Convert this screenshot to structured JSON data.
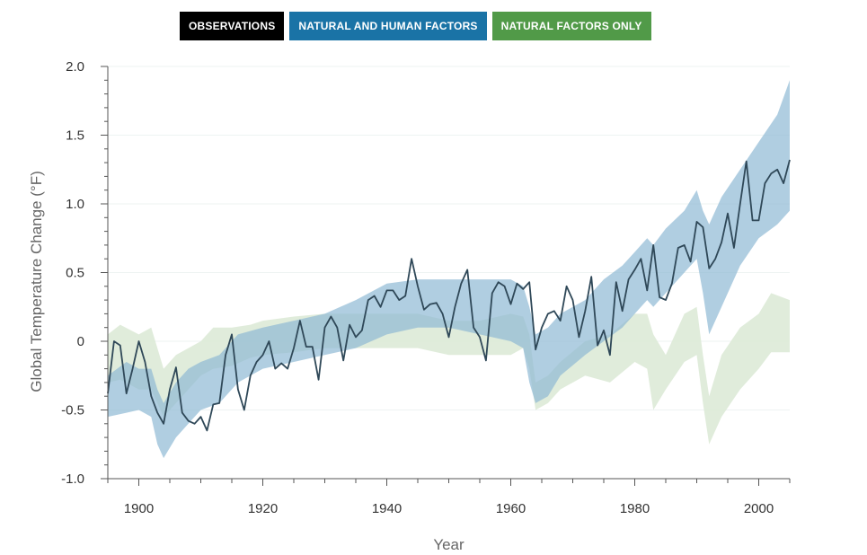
{
  "legend": {
    "observations": {
      "label": "OBSERVATIONS",
      "color": "#000000"
    },
    "natural_human": {
      "label": "NATURAL AND HUMAN FACTORS",
      "color": "#1a73a6"
    },
    "natural_only": {
      "label": "NATURAL FACTORS ONLY",
      "color": "#519a48"
    }
  },
  "chart_data": {
    "type": "line",
    "title": "",
    "xlabel": "Year",
    "ylabel": "Global Temperature Change (°F)",
    "xlim": [
      1895,
      2005
    ],
    "ylim": [
      -1.0,
      2.0
    ],
    "x_ticks": [
      1900,
      1920,
      1940,
      1960,
      1980,
      2000
    ],
    "y_ticks": [
      -1.0,
      -0.5,
      0,
      0.5,
      1.0,
      1.5,
      2.0
    ],
    "y_tick_labels": [
      "-1.0",
      "-0.5",
      "0",
      "0.5",
      "1.0",
      "1.5",
      "2.0"
    ],
    "series": [
      {
        "name": "NATURAL FACTORS ONLY",
        "kind": "band",
        "color": "#dbe9d5",
        "x": [
          1895,
          1897,
          1900,
          1902,
          1904,
          1906,
          1908,
          1910,
          1912,
          1915,
          1918,
          1920,
          1925,
          1930,
          1935,
          1940,
          1945,
          1950,
          1955,
          1960,
          1962,
          1963,
          1964,
          1966,
          1968,
          1972,
          1976,
          1980,
          1982,
          1983,
          1985,
          1988,
          1990,
          1991,
          1992,
          1994,
          1997,
          2000,
          2002,
          2005
        ],
        "upper": [
          0.05,
          0.12,
          0.05,
          0.1,
          -0.2,
          -0.1,
          -0.05,
          0.0,
          0.1,
          0.1,
          0.12,
          0.15,
          0.18,
          0.2,
          0.2,
          0.2,
          0.2,
          0.15,
          0.15,
          0.2,
          0.18,
          0.05,
          -0.3,
          -0.25,
          -0.15,
          0.0,
          0.05,
          0.2,
          0.2,
          0.05,
          -0.1,
          0.2,
          0.25,
          -0.1,
          -0.4,
          -0.1,
          0.1,
          0.2,
          0.35,
          0.3
        ],
        "lower": [
          -0.3,
          -0.28,
          -0.35,
          -0.35,
          -0.55,
          -0.45,
          -0.35,
          -0.25,
          -0.2,
          -0.18,
          -0.12,
          -0.1,
          -0.08,
          -0.05,
          -0.05,
          -0.05,
          -0.05,
          -0.1,
          -0.1,
          -0.1,
          -0.05,
          -0.2,
          -0.5,
          -0.45,
          -0.35,
          -0.25,
          -0.3,
          -0.15,
          -0.2,
          -0.5,
          -0.35,
          -0.15,
          -0.1,
          -0.45,
          -0.75,
          -0.55,
          -0.35,
          -0.2,
          -0.08,
          -0.08
        ]
      },
      {
        "name": "NATURAL AND HUMAN FACTORS",
        "kind": "band",
        "color": "#8fb9d4",
        "x": [
          1895,
          1898,
          1900,
          1902,
          1903,
          1904,
          1906,
          1908,
          1910,
          1913,
          1916,
          1920,
          1925,
          1930,
          1935,
          1940,
          1945,
          1950,
          1955,
          1960,
          1962,
          1963,
          1964,
          1966,
          1968,
          1972,
          1975,
          1978,
          1980,
          1982,
          1983,
          1985,
          1988,
          1990,
          1991,
          1992,
          1994,
          1997,
          2000,
          2003,
          2005
        ],
        "upper": [
          -0.25,
          -0.15,
          -0.2,
          -0.2,
          -0.35,
          -0.45,
          -0.3,
          -0.2,
          -0.15,
          -0.1,
          0.05,
          0.1,
          0.15,
          0.2,
          0.3,
          0.42,
          0.45,
          0.45,
          0.45,
          0.45,
          0.4,
          0.25,
          0.05,
          0.1,
          0.2,
          0.3,
          0.45,
          0.55,
          0.65,
          0.75,
          0.7,
          0.82,
          0.95,
          1.1,
          0.95,
          0.85,
          1.05,
          1.25,
          1.45,
          1.65,
          1.9
        ],
        "lower": [
          -0.55,
          -0.52,
          -0.5,
          -0.55,
          -0.75,
          -0.85,
          -0.7,
          -0.6,
          -0.5,
          -0.45,
          -0.3,
          -0.2,
          -0.15,
          -0.1,
          -0.05,
          0.05,
          0.1,
          0.1,
          0.05,
          0.0,
          -0.05,
          -0.3,
          -0.45,
          -0.4,
          -0.25,
          -0.1,
          0.0,
          0.1,
          0.2,
          0.3,
          0.25,
          0.35,
          0.5,
          0.6,
          0.35,
          0.05,
          0.25,
          0.55,
          0.75,
          0.85,
          0.95
        ]
      },
      {
        "name": "OBSERVATIONS",
        "kind": "line",
        "color": "#2f4858",
        "x": [
          1895,
          1896,
          1897,
          1898,
          1899,
          1900,
          1901,
          1902,
          1903,
          1904,
          1905,
          1906,
          1907,
          1908,
          1909,
          1910,
          1911,
          1912,
          1913,
          1914,
          1915,
          1916,
          1917,
          1918,
          1919,
          1920,
          1921,
          1922,
          1923,
          1924,
          1925,
          1926,
          1927,
          1928,
          1929,
          1930,
          1931,
          1932,
          1933,
          1934,
          1935,
          1936,
          1937,
          1938,
          1939,
          1940,
          1941,
          1942,
          1943,
          1944,
          1945,
          1946,
          1947,
          1948,
          1949,
          1950,
          1951,
          1952,
          1953,
          1954,
          1955,
          1956,
          1957,
          1958,
          1959,
          1960,
          1961,
          1962,
          1963,
          1964,
          1965,
          1966,
          1967,
          1968,
          1969,
          1970,
          1971,
          1972,
          1973,
          1974,
          1975,
          1976,
          1977,
          1978,
          1979,
          1980,
          1981,
          1982,
          1983,
          1984,
          1985,
          1986,
          1987,
          1988,
          1989,
          1990,
          1991,
          1992,
          1993,
          1994,
          1995,
          1996,
          1997,
          1998,
          1999,
          2000,
          2001,
          2002,
          2003,
          2004,
          2005
        ],
        "values": [
          -0.38,
          0.0,
          -0.03,
          -0.38,
          -0.2,
          0.0,
          -0.15,
          -0.4,
          -0.52,
          -0.6,
          -0.35,
          -0.19,
          -0.52,
          -0.58,
          -0.6,
          -0.55,
          -0.65,
          -0.46,
          -0.45,
          -0.1,
          0.05,
          -0.35,
          -0.5,
          -0.25,
          -0.15,
          -0.1,
          0.0,
          -0.2,
          -0.16,
          -0.2,
          -0.05,
          0.15,
          -0.04,
          -0.04,
          -0.28,
          0.1,
          0.18,
          0.1,
          -0.14,
          0.12,
          0.03,
          0.08,
          0.3,
          0.33,
          0.25,
          0.37,
          0.37,
          0.3,
          0.33,
          0.6,
          0.4,
          0.23,
          0.27,
          0.28,
          0.2,
          0.03,
          0.25,
          0.42,
          0.52,
          0.1,
          0.03,
          -0.14,
          0.35,
          0.43,
          0.4,
          0.27,
          0.42,
          0.38,
          0.43,
          -0.06,
          0.1,
          0.2,
          0.22,
          0.15,
          0.4,
          0.3,
          0.03,
          0.22,
          0.47,
          -0.03,
          0.08,
          -0.1,
          0.43,
          0.22,
          0.45,
          0.52,
          0.6,
          0.37,
          0.7,
          0.32,
          0.3,
          0.42,
          0.68,
          0.7,
          0.58,
          0.87,
          0.83,
          0.53,
          0.6,
          0.72,
          0.93,
          0.68,
          1.0,
          1.31,
          0.88,
          0.88,
          1.15,
          1.22,
          1.25,
          1.15,
          1.32
        ]
      }
    ]
  }
}
